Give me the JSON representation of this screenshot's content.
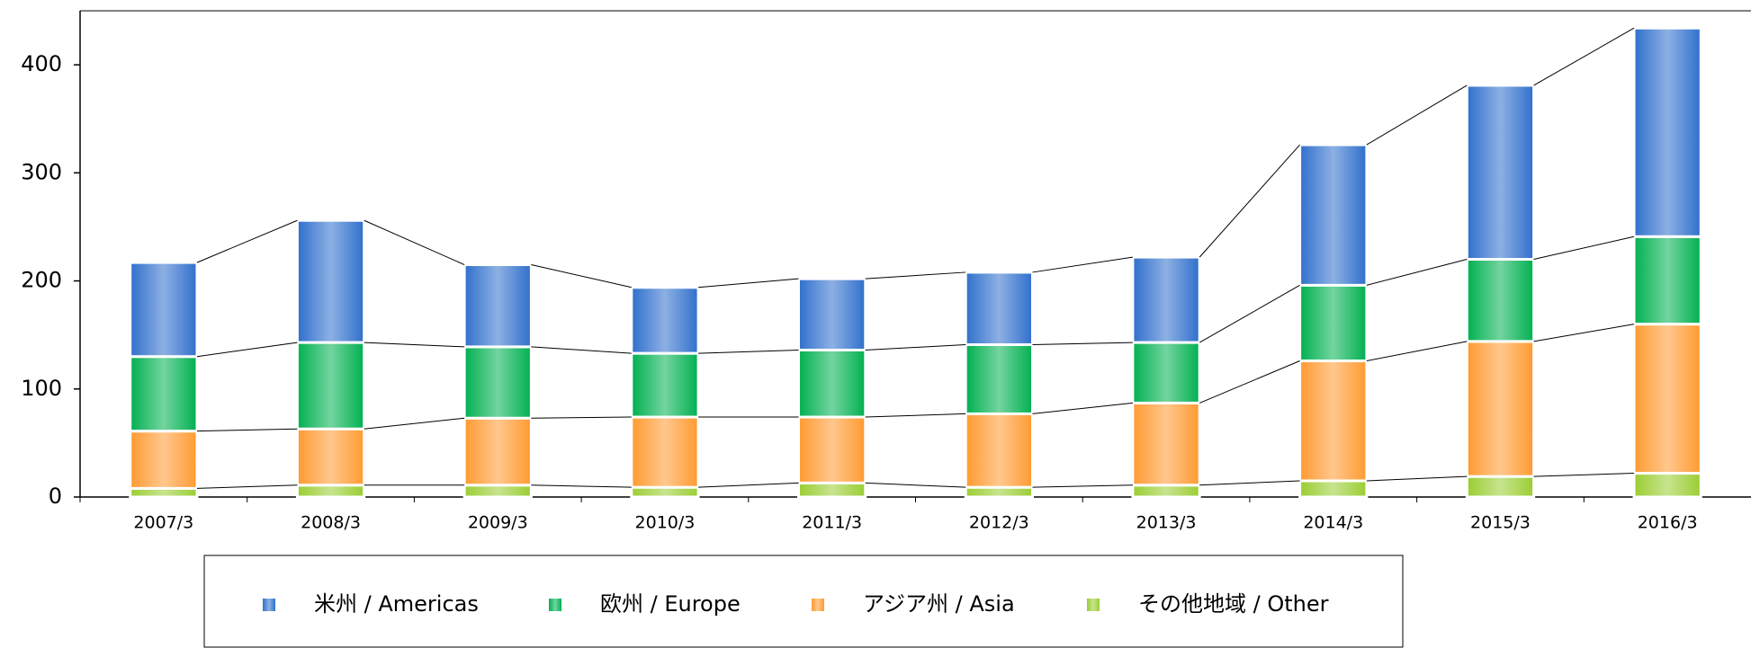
{
  "chart_data": {
    "type": "stacked_bar",
    "categories": [
      "2007/3",
      "2008/3",
      "2009/3",
      "2010/3",
      "2011/3",
      "2012/3",
      "2013/3",
      "2014/3",
      "2015/3",
      "2016/3"
    ],
    "series": [
      {
        "name": "その他地域 / Other",
        "color": "#9acd32",
        "values": [
          8,
          11,
          11,
          9,
          13,
          9,
          11,
          15,
          19,
          22
        ]
      },
      {
        "name": "アジア州 / Asia",
        "color": "#ff9a30",
        "values": [
          53,
          52,
          62,
          65,
          61,
          68,
          76,
          111,
          125,
          138
        ]
      },
      {
        "name": "欧州 / Europe",
        "color": "#00b050",
        "values": [
          69,
          80,
          66,
          59,
          62,
          64,
          56,
          70,
          76,
          81
        ]
      },
      {
        "name": "米州 / Americas",
        "color": "#2f6fcc",
        "values": [
          87,
          113,
          76,
          61,
          66,
          67,
          79,
          130,
          161,
          193
        ]
      }
    ],
    "ylim": [
      0,
      450
    ],
    "yticks": [
      0,
      100,
      200,
      300,
      400
    ],
    "legend_order": [
      3,
      2,
      1,
      0
    ]
  }
}
